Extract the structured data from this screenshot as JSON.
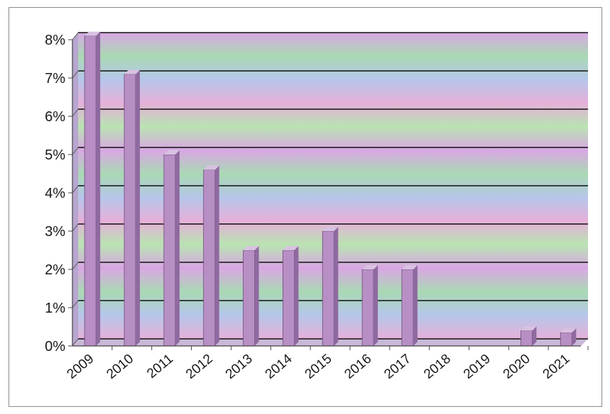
{
  "chart_data": {
    "type": "bar",
    "categories": [
      "2009",
      "2010",
      "2011",
      "2012",
      "2013",
      "2014",
      "2015",
      "2016",
      "2017",
      "2018",
      "2019",
      "2020",
      "2021"
    ],
    "values": [
      8.1,
      7.1,
      5.0,
      4.6,
      2.5,
      2.5,
      3.0,
      2.0,
      2.0,
      0.0,
      0.0,
      0.4,
      0.35
    ],
    "yticks": [
      "0%",
      "1%",
      "2%",
      "3%",
      "4%",
      "5%",
      "6%",
      "7%",
      "8%"
    ],
    "ylim": [
      0,
      8
    ],
    "grid": true,
    "title": "",
    "xlabel": "",
    "ylabel": "",
    "bar_color": "#b88fc4",
    "bar_side_color": "#8f6aa0",
    "gridline_color": "#111111",
    "background_colors": [
      "#d9a7e4",
      "#a9d9b4",
      "#b6c6ea",
      "#e6b0d9",
      "#b9e3b2"
    ]
  }
}
